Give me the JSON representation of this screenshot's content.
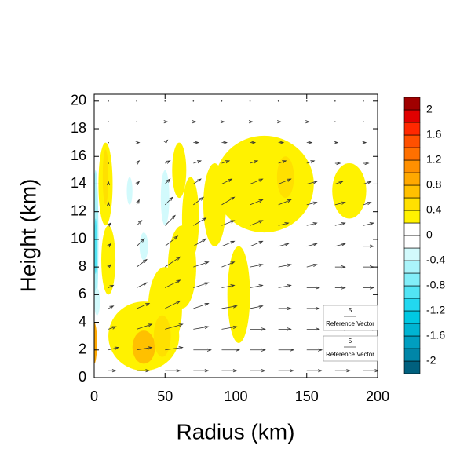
{
  "chart_data": {
    "type": "contour-vector",
    "xlabel": "Radius (km)",
    "ylabel": "Height (km)",
    "xlim": [
      0,
      200
    ],
    "xticks": [
      0,
      50,
      100,
      150,
      200
    ],
    "ylim": [
      0,
      20.5
    ],
    "yticks": [
      0,
      2,
      4,
      6,
      8,
      10,
      12,
      14,
      16,
      18,
      20
    ],
    "levels": [
      -2,
      -1.8,
      -1.6,
      -1.4,
      -1.2,
      -1,
      -0.8,
      -0.6,
      -0.4,
      -0.2,
      0,
      0.2,
      0.4,
      0.6,
      0.8,
      1,
      1.2,
      1.4,
      1.6,
      1.8,
      2
    ],
    "colors": [
      "#00607e",
      "#0086a8",
      "#009ec0",
      "#00b4d2",
      "#00c8e2",
      "#22d8f0",
      "#52e4f4",
      "#82eef8",
      "#aaf4fa",
      "#d2fafc",
      "#ffffff",
      "#ffffff",
      "#fff200",
      "#ffe000",
      "#ffc000",
      "#ffa800",
      "#ff9000",
      "#ff7000",
      "#ff5000",
      "#ff2800",
      "#e00000",
      "#a00000"
    ],
    "colorbar_ticks": [
      -2,
      -1.6,
      -1.2,
      -0.8,
      -0.4,
      0,
      0.4,
      0.8,
      1.2,
      1.6,
      2
    ],
    "regions": [
      {
        "x": 35,
        "y": 3,
        "rx": 25,
        "ry": 2.5,
        "value": 0.3
      },
      {
        "x": 50,
        "y": 5,
        "rx": 12,
        "ry": 3,
        "value": 0.3
      },
      {
        "x": 62,
        "y": 8,
        "rx": 10,
        "ry": 3,
        "value": 0.3
      },
      {
        "x": 68,
        "y": 11.5,
        "rx": 6,
        "ry": 3,
        "value": 0.3
      },
      {
        "x": 120,
        "y": 14,
        "rx": 35,
        "ry": 3.5,
        "value": 0.3
      },
      {
        "x": 180,
        "y": 13.5,
        "rx": 12,
        "ry": 2,
        "value": 0.3
      },
      {
        "x": 102,
        "y": 6,
        "rx": 8,
        "ry": 3.5,
        "value": 0.3
      },
      {
        "x": 85,
        "y": 12.5,
        "rx": 8,
        "ry": 3,
        "value": 0.3
      },
      {
        "x": 8,
        "y": 14,
        "rx": 5,
        "ry": 3,
        "value": 0.3
      },
      {
        "x": 10,
        "y": 8.5,
        "rx": 5,
        "ry": 2.5,
        "value": 0.3
      },
      {
        "x": 60,
        "y": 15,
        "rx": 5,
        "ry": 2,
        "value": 0.3
      },
      {
        "x": 35,
        "y": 2.2,
        "rx": 8,
        "ry": 1.2,
        "value": 0.7
      },
      {
        "x": 48,
        "y": 3,
        "rx": 6,
        "ry": 1.5,
        "value": 0.5
      },
      {
        "x": 135,
        "y": 14.5,
        "rx": 6,
        "ry": 1.5,
        "value": 0.5
      },
      {
        "x": 8,
        "y": 14.5,
        "rx": 2,
        "ry": 2,
        "value": 0.5
      },
      {
        "x": 0,
        "y": 2.5,
        "rx": 2,
        "ry": 1.5,
        "value": 0.9
      },
      {
        "x": 1,
        "y": 10,
        "rx": 2,
        "ry": 5,
        "value": -0.5
      },
      {
        "x": 1,
        "y": 9.5,
        "rx": 1,
        "ry": 2,
        "value": -0.9
      },
      {
        "x": 50,
        "y": 13,
        "rx": 3,
        "ry": 2,
        "value": -0.3
      },
      {
        "x": 25,
        "y": 13.5,
        "rx": 2,
        "ry": 1,
        "value": -0.3
      },
      {
        "x": 35,
        "y": 9.5,
        "rx": 3,
        "ry": 1,
        "value": -0.3
      },
      {
        "x": 2,
        "y": 5.5,
        "rx": 2,
        "ry": 1,
        "value": -0.3
      }
    ],
    "vectors": {
      "x": [
        10,
        30,
        50,
        70,
        90,
        110,
        130,
        150,
        170,
        190
      ],
      "y": [
        0.5,
        2,
        3.5,
        5,
        6.5,
        8,
        9.5,
        11,
        12.5,
        14,
        15.5,
        17,
        18.5,
        20
      ],
      "u": [
        [
          3,
          5,
          6,
          6,
          6,
          6,
          6,
          6,
          6,
          6
        ],
        [
          4,
          6,
          7,
          7,
          7,
          6,
          6,
          6,
          6,
          6
        ],
        [
          3,
          6,
          7,
          6,
          6,
          6,
          5,
          5,
          5,
          5
        ],
        [
          2,
          5,
          6,
          6,
          6,
          5,
          5,
          5,
          5,
          4
        ],
        [
          2,
          4,
          6,
          6,
          5,
          5,
          5,
          5,
          4,
          4
        ],
        [
          1,
          4,
          6,
          6,
          5,
          5,
          5,
          4,
          4,
          4
        ],
        [
          1,
          3,
          5,
          5,
          5,
          5,
          4,
          4,
          4,
          4
        ],
        [
          1,
          2,
          4,
          5,
          5,
          5,
          4,
          4,
          4,
          4
        ],
        [
          0,
          1,
          3,
          4,
          5,
          5,
          5,
          4,
          4,
          3
        ],
        [
          0,
          1,
          2,
          3,
          4,
          5,
          5,
          4,
          3,
          3
        ],
        [
          0,
          1,
          2,
          3,
          3,
          3,
          3,
          3,
          2,
          2
        ],
        [
          0,
          1,
          1,
          2,
          2,
          2,
          2,
          2,
          1,
          1
        ],
        [
          0,
          0,
          1,
          1,
          1,
          1,
          1,
          1,
          0,
          0
        ],
        [
          0,
          0,
          0,
          0,
          0,
          0,
          0,
          0,
          0,
          0
        ]
      ],
      "w": [
        [
          0,
          0,
          0,
          0,
          0,
          0,
          0,
          0,
          0,
          0
        ],
        [
          1,
          1,
          1,
          0,
          0,
          0,
          0,
          0,
          0,
          0
        ],
        [
          1,
          2,
          2,
          1,
          1,
          0,
          0,
          0,
          0,
          0
        ],
        [
          1,
          2,
          3,
          2,
          1,
          1,
          0,
          0,
          0,
          0
        ],
        [
          1,
          2,
          3,
          2,
          1,
          1,
          1,
          0,
          0,
          0
        ],
        [
          1,
          3,
          4,
          2,
          2,
          1,
          1,
          1,
          0,
          0
        ],
        [
          1,
          3,
          4,
          3,
          2,
          2,
          1,
          1,
          1,
          0
        ],
        [
          1,
          2,
          4,
          3,
          2,
          2,
          1,
          1,
          1,
          1
        ],
        [
          1,
          2,
          3,
          3,
          3,
          2,
          2,
          1,
          1,
          1
        ],
        [
          1,
          1,
          2,
          2,
          2,
          2,
          2,
          1,
          1,
          1
        ],
        [
          0,
          1,
          1,
          1,
          1,
          1,
          1,
          1,
          0,
          0
        ],
        [
          0,
          0,
          1,
          0,
          0,
          0,
          0,
          0,
          0,
          0
        ],
        [
          0,
          0,
          0,
          0,
          0,
          0,
          0,
          0,
          0,
          0
        ],
        [
          0,
          0,
          0,
          0,
          0,
          0,
          0,
          0,
          0,
          0
        ]
      ]
    },
    "reference_vector": {
      "magnitude": 5,
      "label": "Reference Vector"
    }
  }
}
